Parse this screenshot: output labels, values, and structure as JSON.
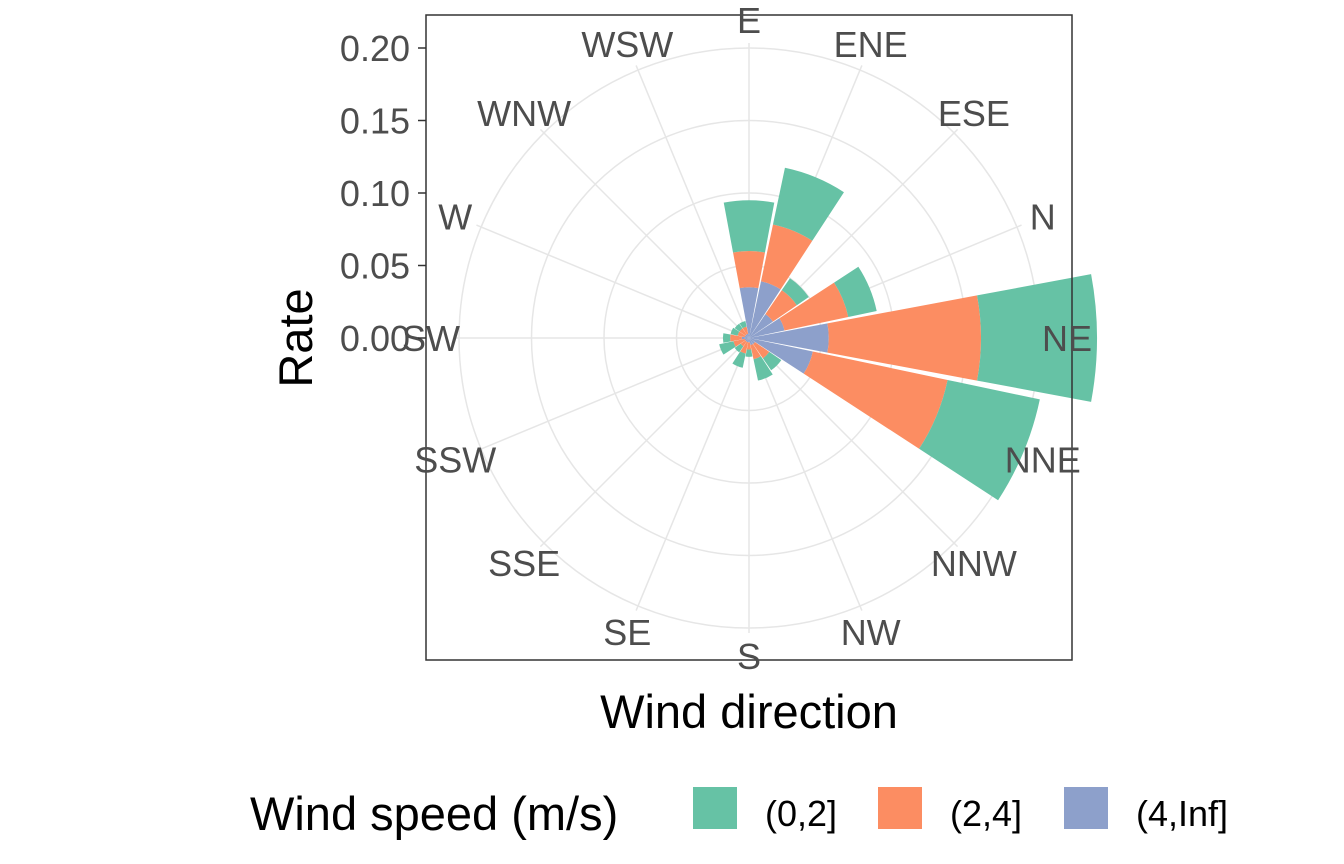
{
  "chart_data": {
    "type": "bar",
    "subtype": "polar-stacked (wind rose)",
    "ylabel": "Rate",
    "xlabel": "Wind direction",
    "yticks": [
      "0.00",
      "0.05",
      "0.10",
      "0.15",
      "0.20"
    ],
    "ylim": [
      0,
      0.2
    ],
    "grid": true,
    "legend_position": "bottom",
    "legend_title": "Wind speed (m/s)",
    "directions": [
      "E",
      "ENE",
      "ESE",
      "N",
      "NE",
      "NNE",
      "NNW",
      "NW",
      "S",
      "SE",
      "SSE",
      "SSW",
      "SW",
      "W",
      "WNW",
      "WSW"
    ],
    "series": [
      {
        "name": "(4,Inf]",
        "color": "#8DA0CB",
        "values": [
          0.035,
          0.04,
          0.02,
          0.025,
          0.055,
          0.045,
          0.005,
          0.005,
          0.003,
          0.003,
          0.003,
          0.003,
          0.005,
          0.003,
          0.003,
          0.003
        ]
      },
      {
        "name": "(2,4]",
        "color": "#FC8D62",
        "values": [
          0.025,
          0.04,
          0.02,
          0.045,
          0.105,
          0.095,
          0.012,
          0.01,
          0.005,
          0.008,
          0.004,
          0.008,
          0.008,
          0.005,
          0.005,
          0.005
        ]
      },
      {
        "name": "(0,2]",
        "color": "#66C2A5",
        "values": [
          0.035,
          0.04,
          0.01,
          0.02,
          0.08,
          0.065,
          0.01,
          0.015,
          0.005,
          0.01,
          0.005,
          0.01,
          0.005,
          0.005,
          0.004,
          0.004
        ]
      }
    ]
  }
}
